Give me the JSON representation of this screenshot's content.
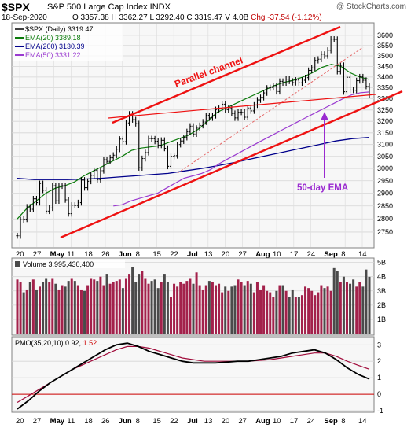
{
  "header": {
    "ticker": "$SPX",
    "name": "S&P 500 Large Cap Index  INDX",
    "watermark": "@ StockCharts.com",
    "date": "18-Sep-2020",
    "open": "O 3357.38",
    "high": "H 3362.27",
    "low": "L 3292.40",
    "close": "C 3319.47",
    "volume": "V 4.0B",
    "change": "Chg -37.54 (-1.12%)"
  },
  "legend": {
    "price": "$SPX (Daily) 3319.47",
    "ema20": "EMA(20) 3389.18",
    "ema200": "EMA(200) 3130.39",
    "ema50": "EMA(50) 3331.22"
  },
  "annotations": {
    "channel": "Parallel channel",
    "ema50": "50-day EMA"
  },
  "volume_label": "Volume 3,995,430,400",
  "pmo_label_a": "PMO(35,20,10) 0.92,",
  "pmo_label_b": "1.52",
  "colors": {
    "price": "#000000",
    "ema20": "#0a7a0a",
    "ema200": "#00008b",
    "ema50": "#9a3ad0",
    "channel": "#ee1111",
    "vol_up": "#a3214b",
    "vol_down": "#4a4a4a",
    "pmo": "#000000",
    "pmo_signal": "#a00a3a",
    "zero_line": "#cc0000",
    "panel_bg": "#f7f7f7"
  },
  "chart_data": [
    {
      "type": "line",
      "title": "$SPX S&P 500 Large Cap Index",
      "x_ticks": [
        "20",
        "27",
        "May",
        "11",
        "18",
        "26",
        "Jun",
        "8",
        "15",
        "22",
        "Jul",
        "13",
        "20",
        "27",
        "Aug",
        "10",
        "17",
        "24",
        "Sep",
        "8",
        "14"
      ],
      "ylim": [
        2700,
        3650
      ],
      "y_ticks": [
        2750,
        2800,
        2850,
        2900,
        2950,
        3000,
        3050,
        3100,
        3150,
        3200,
        3250,
        3300,
        3350,
        3400,
        3450,
        3500,
        3550,
        3600
      ],
      "y_scale": "log",
      "close": [
        2736,
        2797,
        2799,
        2846,
        2837,
        2878,
        2863,
        2939,
        2912,
        2830,
        2842,
        2930,
        2870,
        2929,
        2930,
        2874,
        2820,
        2853,
        2852,
        2863,
        2953,
        2922,
        2948,
        2972,
        2992,
        2955,
        2991,
        3036,
        3029,
        3044,
        3055,
        3080,
        3123,
        3112,
        3193,
        3232,
        3207,
        3190,
        3003,
        3041,
        3066,
        3125,
        3124,
        3114,
        3097,
        3118,
        3084,
        3009,
        3050,
        3053,
        3100,
        3115,
        3130,
        3155,
        3179,
        3145,
        3170,
        3182,
        3197,
        3226,
        3215,
        3225,
        3252,
        3257,
        3276,
        3251,
        3257,
        3235,
        3215,
        3240,
        3240,
        3218,
        3259,
        3246,
        3272,
        3295,
        3306,
        3327,
        3349,
        3351,
        3360,
        3333,
        3380,
        3373,
        3390,
        3381,
        3374,
        3386,
        3373,
        3385,
        3397,
        3431,
        3443,
        3478,
        3484,
        3508,
        3500,
        3527,
        3581,
        3580,
        3426,
        3455,
        3332,
        3399,
        3340,
        3339,
        3383,
        3401,
        3385,
        3357,
        3319
      ],
      "series": [
        {
          "name": "EMA(20)",
          "values": [
            2800,
            2840,
            2870,
            2900,
            2920,
            2930,
            2945,
            2970,
            2990,
            3010,
            3030,
            3050,
            3075,
            3085,
            3090,
            3095,
            3110,
            3125,
            3140,
            3165,
            3200,
            3240,
            3260,
            3280,
            3300,
            3320,
            3340,
            3360,
            3375,
            3385,
            3400,
            3420,
            3445,
            3460,
            3450,
            3420,
            3400,
            3389
          ]
        },
        {
          "name": "EMA(50)",
          "values": [
            2850,
            2855,
            2870,
            2880,
            2890,
            2900,
            2920,
            2940,
            2960,
            2970,
            2980,
            2995,
            3020,
            3040,
            3060,
            3080,
            3100,
            3120,
            3140,
            3160,
            3180,
            3200,
            3220,
            3240,
            3260,
            3280,
            3300,
            3318,
            3328,
            3331
          ]
        },
        {
          "name": "EMA(200)",
          "values": [
            2960,
            2955,
            2955,
            2955,
            2957,
            2960,
            2965,
            2970,
            2975,
            2980,
            2990,
            3000,
            3012,
            3025,
            3040,
            3055,
            3070,
            3085,
            3100,
            3115,
            3125,
            3130
          ]
        }
      ]
    },
    {
      "type": "bar",
      "title": "Volume",
      "y_ticks": [
        "1B",
        "2B",
        "3B",
        "4B",
        "5B"
      ],
      "ylim": [
        0,
        5.2
      ],
      "values": [
        3.8,
        3.6,
        2.9,
        3.1,
        3.6,
        3.8,
        3.1,
        3.3,
        3.6,
        3.9,
        3.6,
        3.9,
        3.5,
        3.1,
        3.4,
        3.3,
        3.7,
        3.9,
        3.7,
        3.4,
        3.1,
        3.0,
        3.4,
        3.9,
        3.8,
        3.7,
        4.0,
        3.4,
        4.2,
        3.5,
        3.6,
        3.7,
        3.8,
        3.2,
        3.9,
        4.2,
        4.7,
        3.6,
        4.2,
        4.4,
        3.9,
        3.5,
        3.7,
        3.8,
        3.2,
        3.6,
        4.2,
        3.6,
        2.6,
        3.5,
        3.3,
        3.6,
        3.5,
        3.7,
        3.9,
        3.5,
        4.3,
        3.4,
        3.1,
        3.4,
        3.7,
        3.6,
        3.4,
        3.5,
        2.9,
        3.3,
        3.0,
        3.3,
        3.4,
        3.8,
        3.6,
        3.4,
        3.7,
        3.5,
        2.9,
        3.6,
        3.1,
        3.4,
        3.0,
        2.9,
        2.6,
        3.0,
        3.4,
        3.4,
        3.0,
        2.6,
        3.1,
        2.6,
        2.6,
        2.7,
        3.3,
        3.2,
        3.0,
        2.7,
        2.9,
        3.4,
        3.2,
        3.3,
        3.0,
        4.6,
        4.4,
        3.6,
        4.0,
        3.6,
        3.5,
        3.8,
        3.3,
        3.6,
        3.3,
        4.5,
        3.99
      ],
      "up": [
        1,
        1,
        0,
        1,
        0,
        1,
        0,
        1,
        0,
        0,
        1,
        1,
        0,
        1,
        1,
        0,
        0,
        1,
        0,
        1,
        1,
        0,
        1,
        1,
        1,
        0,
        1,
        1,
        0,
        1,
        1,
        1,
        1,
        0,
        1,
        1,
        0,
        0,
        0,
        1,
        1,
        1,
        0,
        0,
        0,
        1,
        0,
        0,
        1,
        1,
        1,
        1,
        1,
        1,
        1,
        0,
        1,
        1,
        1,
        1,
        0,
        1,
        1,
        1,
        1,
        0,
        1,
        0,
        0,
        1,
        1,
        0,
        1,
        0,
        1,
        1,
        1,
        1,
        1,
        1,
        1,
        0,
        1,
        0,
        1,
        0,
        0,
        1,
        0,
        1,
        1,
        1,
        1,
        1,
        1,
        1,
        0,
        1,
        1,
        0,
        0,
        1,
        0,
        1,
        0,
        0,
        1,
        1,
        0,
        0,
        0
      ]
    },
    {
      "type": "line",
      "title": "PMO(35,20,10)",
      "ylim": [
        -1.0,
        3.3
      ],
      "y_ticks": [
        "-1",
        "0",
        "1",
        "2",
        "3"
      ],
      "series": [
        {
          "name": "PMO",
          "values": [
            -0.9,
            -0.4,
            0.2,
            0.7,
            1.1,
            1.5,
            1.9,
            2.3,
            2.7,
            3.0,
            3.1,
            2.9,
            2.6,
            2.4,
            2.2,
            2.0,
            1.9,
            1.9,
            1.9,
            1.95,
            2.0,
            2.0,
            2.1,
            2.2,
            2.3,
            2.5,
            2.6,
            2.7,
            2.5,
            2.1,
            1.6,
            1.2,
            0.92
          ]
        },
        {
          "name": "Signal",
          "values": [
            -0.5,
            -0.1,
            0.3,
            0.7,
            1.1,
            1.5,
            1.8,
            2.1,
            2.4,
            2.7,
            2.9,
            2.9,
            2.8,
            2.6,
            2.4,
            2.2,
            2.1,
            2.0,
            2.0,
            2.0,
            2.0,
            2.0,
            2.05,
            2.1,
            2.2,
            2.3,
            2.4,
            2.5,
            2.5,
            2.3,
            2.0,
            1.75,
            1.52
          ]
        }
      ]
    }
  ]
}
